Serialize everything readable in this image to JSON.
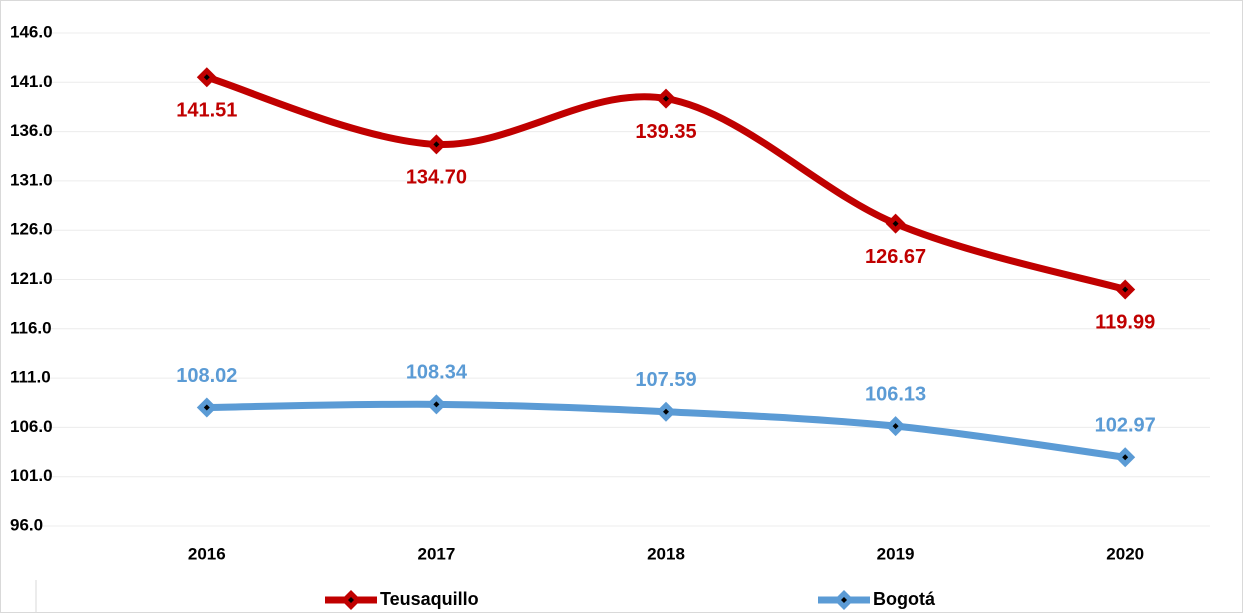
{
  "chart_data": {
    "type": "line",
    "categories": [
      "2016",
      "2017",
      "2018",
      "2019",
      "2020"
    ],
    "series": [
      {
        "name": "Teusaquillo",
        "color": "#c00000",
        "values": [
          141.51,
          134.7,
          139.35,
          126.67,
          119.99
        ],
        "value_labels": [
          "141.51",
          "134.70",
          "139.35",
          "126.67",
          "119.99"
        ],
        "label_position": "below"
      },
      {
        "name": "Bogotá",
        "color": "#5b9bd5",
        "values": [
          108.02,
          108.34,
          107.59,
          106.13,
          102.97
        ],
        "value_labels": [
          "108.02",
          "108.34",
          "107.59",
          "106.13",
          "102.97"
        ],
        "label_position": "above"
      }
    ],
    "ylim": [
      96,
      146
    ],
    "yticks": [
      {
        "value": 96,
        "label": "96.0"
      },
      {
        "value": 101,
        "label": "101.0"
      },
      {
        "value": 106,
        "label": "106.0"
      },
      {
        "value": 111,
        "label": "111.0"
      },
      {
        "value": 116,
        "label": "116.0"
      },
      {
        "value": 121,
        "label": "121.0"
      },
      {
        "value": 126,
        "label": "126.0"
      },
      {
        "value": 131,
        "label": "131.0"
      },
      {
        "value": 136,
        "label": "136.0"
      },
      {
        "value": 141,
        "label": "141.0"
      },
      {
        "value": 146,
        "label": "146.0"
      }
    ],
    "grid": true,
    "smooth": true,
    "legend": "bottom"
  }
}
